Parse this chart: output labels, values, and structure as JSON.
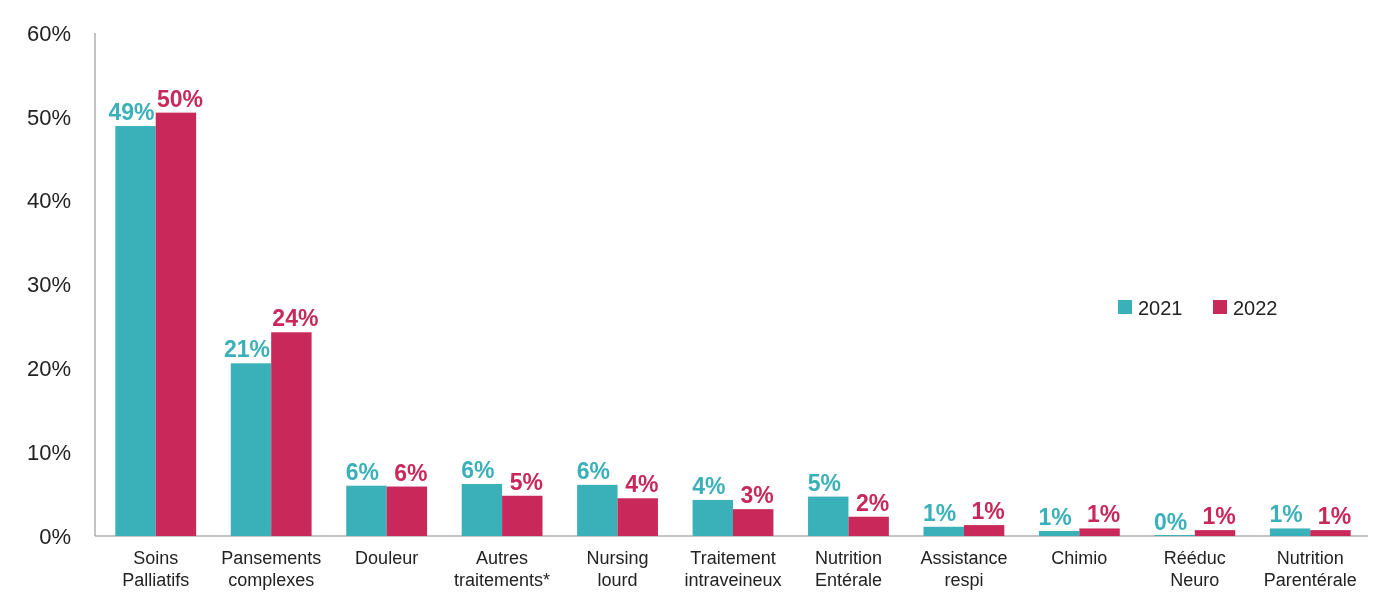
{
  "chart_data": {
    "type": "bar",
    "categories": [
      "Soins Palliatifs",
      "Pansements complexes",
      "Douleur",
      "Autres traitements*",
      "Nursing lourd",
      "Traitement intraveineux",
      "Nutrition Entérale",
      "Assistance respi",
      "Chimio",
      "Rééduc Neuro",
      "Nutrition Parentérale"
    ],
    "series": [
      {
        "name": "2021",
        "color": "#3ab0b8",
        "values": [
          48.9,
          20.6,
          6.0,
          6.2,
          6.1,
          4.3,
          4.7,
          1.1,
          0.6,
          0.0,
          0.9
        ],
        "value_labels": [
          "49%",
          "21%",
          "6%",
          "6%",
          "6%",
          "4%",
          "5%",
          "1%",
          "1%",
          "0%",
          "1%"
        ]
      },
      {
        "name": "2022",
        "color": "#c8285a",
        "values": [
          50.5,
          24.3,
          5.9,
          4.8,
          4.5,
          3.2,
          2.3,
          1.3,
          0.9,
          0.7,
          0.7
        ],
        "value_labels": [
          "50%",
          "24%",
          "6%",
          "5%",
          "4%",
          "3%",
          "2%",
          "1%",
          "1%",
          "1%",
          "1%"
        ]
      }
    ],
    "ylim": [
      0,
      60
    ],
    "yticks": [
      {
        "value": 0,
        "label": "0%"
      },
      {
        "value": 10,
        "label": "10%"
      },
      {
        "value": 20,
        "label": "20%"
      },
      {
        "value": 30,
        "label": "30%"
      },
      {
        "value": 40,
        "label": "40%"
      },
      {
        "value": 50,
        "label": "50%"
      },
      {
        "value": 60,
        "label": "60%"
      }
    ],
    "grid": false,
    "legend": "right"
  }
}
